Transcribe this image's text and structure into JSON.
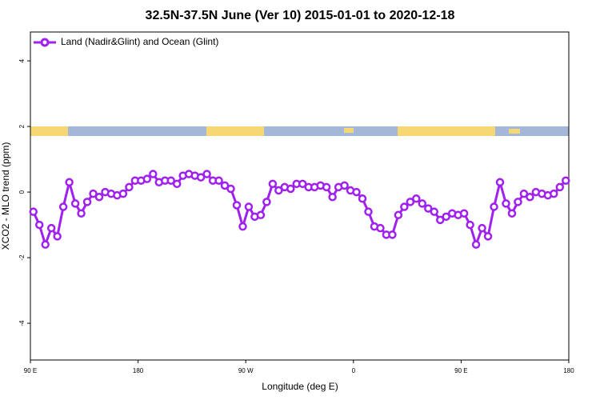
{
  "chart_data": {
    "type": "line",
    "title": "32.5N-37.5N June (Ver 10)   2015-01-01 to 2020-12-18",
    "x_label": "Longitude (deg E)",
    "y_label": "XCO2 - MLO trend (ppm)",
    "xlim": [
      90,
      540
    ],
    "ylim": [
      -5.12,
      4.88
    ],
    "xticks": [
      {
        "value": 90,
        "label": "90 E"
      },
      180,
      {
        "value": 270,
        "label": "90 W"
      },
      {
        "value": 360,
        "label": "0"
      },
      {
        "value": 450,
        "label": "90 E"
      },
      {
        "value": 540,
        "label": "180"
      }
    ],
    "yticks": [
      -4,
      -2,
      0,
      2,
      4
    ],
    "legend": "top-left",
    "x": [
      92.5,
      97.5,
      102.5,
      107.5,
      112.5,
      117.5,
      122.5,
      127.5,
      132.5,
      137.5,
      142.5,
      147.5,
      152.5,
      157.5,
      162.5,
      167.5,
      172.5,
      177.5,
      182.5,
      187.5,
      192.5,
      197.5,
      202.5,
      207.5,
      212.5,
      217.5,
      222.5,
      227.5,
      232.5,
      237.5,
      242.5,
      247.5,
      252.5,
      257.5,
      262.5,
      267.5,
      272.5,
      277.5,
      282.5,
      287.5,
      292.5,
      297.5,
      302.5,
      307.5,
      312.5,
      317.5,
      322.5,
      327.5,
      332.5,
      337.5,
      342.5,
      347.5,
      352.5,
      357.5,
      362.5,
      367.5,
      372.5,
      377.5,
      382.5,
      387.5,
      392.5,
      397.5,
      402.5,
      407.5,
      412.5,
      417.5,
      422.5,
      427.5,
      432.5,
      437.5,
      442.5,
      447.5,
      452.5,
      457.5,
      462.5,
      467.5,
      472.5,
      477.5,
      482.5,
      487.5,
      492.5,
      497.5,
      502.5,
      507.5,
      512.5,
      517.5,
      522.5,
      527.5,
      532.5,
      537.5
    ],
    "series": [
      {
        "name": "Land (Nadir&Glint) and Ocean (Glint)",
        "color": "#a020f0",
        "values": [
          -0.6,
          -1.0,
          -1.6,
          -1.1,
          -1.35,
          -0.45,
          0.3,
          -0.35,
          -0.65,
          -0.3,
          -0.05,
          -0.15,
          0,
          -0.05,
          -0.1,
          -0.05,
          0.15,
          0.35,
          0.35,
          0.4,
          0.55,
          0.3,
          0.35,
          0.35,
          0.25,
          0.5,
          0.55,
          0.5,
          0.45,
          0.55,
          0.35,
          0.35,
          0.2,
          0.1,
          -0.4,
          -1.05,
          -0.45,
          -0.75,
          -0.7,
          -0.3,
          0.25,
          0.05,
          0.15,
          0.1,
          0.25,
          0.25,
          0.15,
          0.15,
          0.2,
          0.15,
          -0.15,
          0.15,
          0.2,
          0.05,
          0,
          -0.2,
          -0.6,
          -1.05,
          -1.1,
          -1.3,
          -1.3,
          -0.7,
          -0.45,
          -0.3,
          -0.2,
          -0.35,
          -0.5,
          -0.6,
          -0.85,
          -0.75,
          -0.65,
          -0.7,
          -0.65,
          -1.0,
          -1.6,
          -1.1,
          -1.35,
          -0.45,
          0.3,
          -0.35,
          -0.65,
          -0.3,
          -0.05,
          -0.15,
          0,
          -0.05,
          -0.1,
          -0.05,
          0.15,
          0.35
        ]
      }
    ]
  }
}
